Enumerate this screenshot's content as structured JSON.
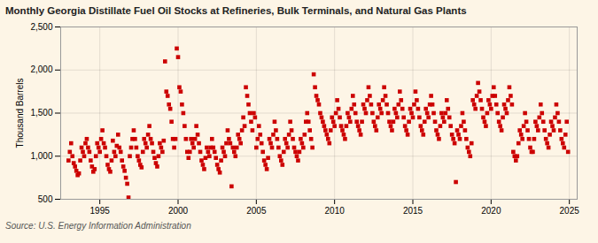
{
  "chart_data": {
    "type": "scatter",
    "title": "Monthly Georgia Distillate Fuel Oil Stocks at Refineries, Bulk Terminals, and Natural Gas Plants",
    "ylabel": "Thousand Barrels",
    "caption": "Source: U.S. Energy Information Administration",
    "color": "#cc0000",
    "marker": "square",
    "grid": true,
    "xlim": [
      1992.5,
      2025.5
    ],
    "xticks": [
      1995,
      2000,
      2005,
      2010,
      2015,
      2020,
      2025
    ],
    "ylim": [
      500,
      2500
    ],
    "yticks": [
      500,
      {
        "value": 1000,
        "label": "1,000"
      },
      {
        "value": 1500,
        "label": "1,500"
      },
      {
        "value": 2000,
        "label": "2,000"
      },
      {
        "value": 2500,
        "label": "2,500"
      }
    ],
    "x": [
      1993.0,
      1993.083,
      1993.167,
      1993.25,
      1993.333,
      1993.417,
      1993.5,
      1993.583,
      1993.667,
      1993.75,
      1993.833,
      1993.917,
      1994.0,
      1994.083,
      1994.167,
      1994.25,
      1994.333,
      1994.417,
      1994.5,
      1994.583,
      1994.667,
      1994.75,
      1994.833,
      1994.917,
      1995.0,
      1995.083,
      1995.167,
      1995.25,
      1995.333,
      1995.417,
      1995.5,
      1995.583,
      1995.667,
      1995.75,
      1995.833,
      1995.917,
      1996.0,
      1996.083,
      1996.167,
      1996.25,
      1996.333,
      1996.417,
      1996.5,
      1996.583,
      1996.667,
      1996.75,
      1996.833,
      1996.917,
      1997.0,
      1997.083,
      1997.167,
      1997.25,
      1997.333,
      1997.417,
      1997.5,
      1997.583,
      1997.667,
      1997.75,
      1997.833,
      1997.917,
      1998.0,
      1998.083,
      1998.167,
      1998.25,
      1998.333,
      1998.417,
      1998.5,
      1998.583,
      1998.667,
      1998.75,
      1998.833,
      1998.917,
      1999.0,
      1999.083,
      1999.167,
      1999.25,
      1999.333,
      1999.417,
      1999.5,
      1999.583,
      1999.667,
      1999.75,
      1999.833,
      1999.917,
      2000.0,
      2000.083,
      2000.167,
      2000.25,
      2000.333,
      2000.417,
      2000.5,
      2000.583,
      2000.667,
      2000.75,
      2000.833,
      2000.917,
      2001.0,
      2001.083,
      2001.167,
      2001.25,
      2001.333,
      2001.417,
      2001.5,
      2001.583,
      2001.667,
      2001.75,
      2001.833,
      2001.917,
      2002.0,
      2002.083,
      2002.167,
      2002.25,
      2002.333,
      2002.417,
      2002.5,
      2002.583,
      2002.667,
      2002.75,
      2002.833,
      2002.917,
      2003.0,
      2003.083,
      2003.167,
      2003.25,
      2003.333,
      2003.417,
      2003.5,
      2003.583,
      2003.667,
      2003.75,
      2003.833,
      2003.917,
      2004.0,
      2004.083,
      2004.167,
      2004.25,
      2004.333,
      2004.417,
      2004.5,
      2004.583,
      2004.667,
      2004.75,
      2004.833,
      2004.917,
      2005.0,
      2005.083,
      2005.167,
      2005.25,
      2005.333,
      2005.417,
      2005.5,
      2005.583,
      2005.667,
      2005.75,
      2005.833,
      2005.917,
      2006.0,
      2006.083,
      2006.167,
      2006.25,
      2006.333,
      2006.417,
      2006.5,
      2006.583,
      2006.667,
      2006.75,
      2006.833,
      2006.917,
      2007.0,
      2007.083,
      2007.167,
      2007.25,
      2007.333,
      2007.417,
      2007.5,
      2007.583,
      2007.667,
      2007.75,
      2007.833,
      2007.917,
      2008.0,
      2008.083,
      2008.167,
      2008.25,
      2008.333,
      2008.417,
      2008.5,
      2008.583,
      2008.667,
      2008.75,
      2008.833,
      2008.917,
      2009.0,
      2009.083,
      2009.167,
      2009.25,
      2009.333,
      2009.417,
      2009.5,
      2009.583,
      2009.667,
      2009.75,
      2009.833,
      2009.917,
      2010.0,
      2010.083,
      2010.167,
      2010.25,
      2010.333,
      2010.417,
      2010.5,
      2010.583,
      2010.667,
      2010.75,
      2010.833,
      2010.917,
      2011.0,
      2011.083,
      2011.167,
      2011.25,
      2011.333,
      2011.417,
      2011.5,
      2011.583,
      2011.667,
      2011.75,
      2011.833,
      2011.917,
      2012.0,
      2012.083,
      2012.167,
      2012.25,
      2012.333,
      2012.417,
      2012.5,
      2012.583,
      2012.667,
      2012.75,
      2012.833,
      2012.917,
      2013.0,
      2013.083,
      2013.167,
      2013.25,
      2013.333,
      2013.417,
      2013.5,
      2013.583,
      2013.667,
      2013.75,
      2013.833,
      2013.917,
      2014.0,
      2014.083,
      2014.167,
      2014.25,
      2014.333,
      2014.417,
      2014.5,
      2014.583,
      2014.667,
      2014.75,
      2014.833,
      2014.917,
      2015.0,
      2015.083,
      2015.167,
      2015.25,
      2015.333,
      2015.417,
      2015.5,
      2015.583,
      2015.667,
      2015.75,
      2015.833,
      2015.917,
      2016.0,
      2016.083,
      2016.167,
      2016.25,
      2016.333,
      2016.417,
      2016.5,
      2016.583,
      2016.667,
      2016.75,
      2016.833,
      2016.917,
      2017.0,
      2017.083,
      2017.167,
      2017.25,
      2017.333,
      2017.417,
      2017.5,
      2017.583,
      2017.667,
      2017.75,
      2017.833,
      2017.917,
      2018.0,
      2018.083,
      2018.167,
      2018.25,
      2018.333,
      2018.417,
      2018.5,
      2018.583,
      2018.667,
      2018.75,
      2018.833,
      2018.917,
      2019.0,
      2019.083,
      2019.167,
      2019.25,
      2019.333,
      2019.417,
      2019.5,
      2019.583,
      2019.667,
      2019.75,
      2019.833,
      2019.917,
      2020.0,
      2020.083,
      2020.167,
      2020.25,
      2020.333,
      2020.417,
      2020.5,
      2020.583,
      2020.667,
      2020.75,
      2020.833,
      2020.917,
      2021.0,
      2021.083,
      2021.167,
      2021.25,
      2021.333,
      2021.417,
      2021.5,
      2021.583,
      2021.667,
      2021.75,
      2021.833,
      2021.917,
      2022.0,
      2022.083,
      2022.167,
      2022.25,
      2022.333,
      2022.417,
      2022.5,
      2022.583,
      2022.667,
      2022.75,
      2022.833,
      2022.917,
      2023.0,
      2023.083,
      2023.167,
      2023.25,
      2023.333,
      2023.417,
      2023.5,
      2023.583,
      2023.667,
      2023.75,
      2023.833,
      2023.917,
      2024.0,
      2024.083,
      2024.167,
      2024.25,
      2024.333,
      2024.417,
      2024.5,
      2024.583,
      2024.667,
      2024.75,
      2024.833,
      2024.917
    ],
    "values": [
      950,
      1050,
      1150,
      1000,
      920,
      880,
      830,
      780,
      800,
      950,
      1100,
      1050,
      1000,
      1150,
      1200,
      1100,
      1050,
      950,
      880,
      820,
      850,
      1000,
      1150,
      1100,
      1050,
      1200,
      1300,
      1150,
      1100,
      1000,
      900,
      850,
      820,
      950,
      1180,
      1050,
      1000,
      1120,
      1250,
      1100,
      1050,
      950,
      880,
      830,
      750,
      680,
      520,
      1000,
      1100,
      1200,
      1300,
      1200,
      1100,
      1000,
      950,
      900,
      870,
      1050,
      1200,
      1150,
      1100,
      1250,
      1350,
      1200,
      1150,
      1050,
      980,
      920,
      880,
      1000,
      1150,
      1100,
      1050,
      1180,
      2100,
      1750,
      1700,
      1600,
      1550,
      1400,
      1200,
      1100,
      1200,
      2250,
      2150,
      1800,
      1750,
      1600,
      1500,
      1350,
      1200,
      1050,
      980,
      1050,
      1200,
      1150,
      1100,
      1200,
      1350,
      1250,
      1150,
      1050,
      950,
      900,
      850,
      980,
      1100,
      1050,
      1000,
      1100,
      1200,
      1100,
      1050,
      980,
      900,
      850,
      810,
      950,
      1100,
      1050,
      1000,
      1150,
      1300,
      1200,
      1150,
      650,
      1100,
      1050,
      1000,
      1100,
      1250,
      1200,
      1150,
      1300,
      1450,
      1350,
      1800,
      1700,
      1600,
      1500,
      1400,
      1300,
      1500,
      1450,
      1100,
      1200,
      1350,
      1250,
      1150,
      1050,
      950,
      900,
      850,
      980,
      1200,
      1150,
      1100,
      1250,
      1400,
      1300,
      1200,
      1100,
      1000,
      950,
      900,
      1050,
      1200,
      1150,
      1100,
      1250,
      1400,
      1300,
      1200,
      1100,
      1050,
      1000,
      950,
      1050,
      1200,
      1150,
      1100,
      1250,
      1400,
      1500,
      1400,
      1300,
      1200,
      1100,
      1950,
      1800,
      1700,
      1650,
      1600,
      1500,
      1450,
      1400,
      1350,
      1300,
      1250,
      1200,
      1150,
      1300,
      1450,
      1400,
      1350,
      1500,
      1650,
      1550,
      1450,
      1350,
      1300,
      1250,
      1200,
      1350,
      1500,
      1450,
      1400,
      1550,
      1700,
      1600,
      1500,
      1400,
      1350,
      1300,
      1250,
      1400,
      1600,
      1550,
      1500,
      1650,
      1800,
      1700,
      1600,
      1500,
      1400,
      1350,
      1300,
      1450,
      1600,
      1550,
      1500,
      1650,
      1800,
      1700,
      1600,
      1500,
      1400,
      1350,
      1300,
      1400,
      1550,
      1500,
      1450,
      1600,
      1750,
      1650,
      1550,
      1450,
      1350,
      1300,
      1250,
      1400,
      1550,
      1500,
      1450,
      1600,
      1750,
      1650,
      1550,
      1450,
      1350,
      1300,
      1250,
      1400,
      1550,
      1500,
      1450,
      1600,
      1700,
      1600,
      1500,
      1400,
      1300,
      1250,
      1200,
      1350,
      1500,
      1450,
      1400,
      1500,
      1650,
      1550,
      1450,
      1350,
      1250,
      1200,
      1150,
      700,
      1300,
      1250,
      1200,
      1350,
      1500,
      1400,
      1300,
      1200,
      1100,
      1050,
      1000,
      1150,
      1650,
      1600,
      1550,
      1700,
      1850,
      1750,
      1650,
      1550,
      1450,
      1400,
      1350,
      1500,
      1650,
      1600,
      1550,
      1700,
      1800,
      1700,
      1600,
      1500,
      1400,
      1350,
      1300,
      1450,
      1600,
      1550,
      1500,
      1650,
      1800,
      1700,
      1600,
      1050,
      1000,
      950,
      1000,
      1150,
      1300,
      1250,
      1200,
      1350,
      1500,
      1400,
      1300,
      1200,
      1100,
      1050,
      1050,
      1200,
      1400,
      1350,
      1300,
      1450,
      1600,
      1500,
      1400,
      1300,
      1200,
      1150,
      1100,
      1250,
      1400,
      1350,
      1300,
      1450,
      1600,
      1500,
      1400,
      1300,
      1200,
      1150,
      1100,
      1250,
      1400,
      1050
    ]
  }
}
